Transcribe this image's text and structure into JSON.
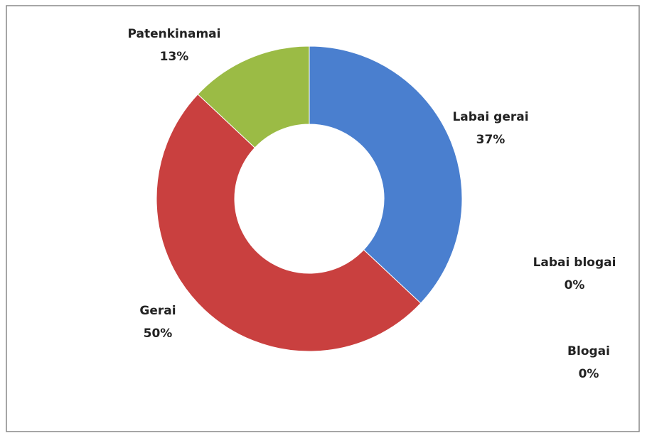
{
  "chart_data": {
    "type": "donut",
    "categories": [
      "Labai gerai",
      "Labai blogai",
      "Blogai",
      "Gerai",
      "Patenkinamai"
    ],
    "values": [
      37,
      0,
      0,
      50,
      13
    ],
    "value_labels": [
      "37%",
      "0%",
      "0%",
      "50%",
      "13%"
    ],
    "colors": [
      "#4a7fcf",
      "#7f7f7f",
      "#7f7f7f",
      "#c9403f",
      "#9bbb45"
    ]
  }
}
